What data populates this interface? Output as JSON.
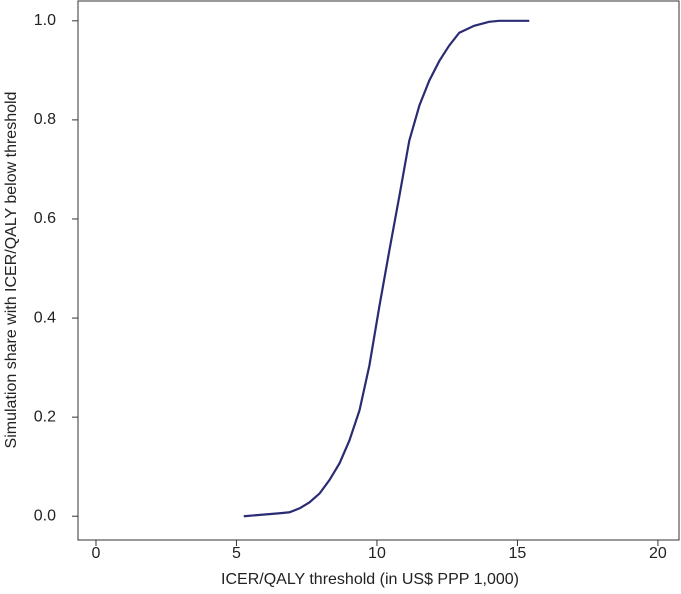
{
  "chart_data": {
    "type": "line",
    "x_label": "ICER/QALY threshold (in US$ PPP 1,000)",
    "y_label": "Simulation share with ICER/QALY below threshold",
    "x": [
      5.26,
      6.54,
      6.89,
      7.25,
      7.6,
      7.96,
      8.31,
      8.67,
      9.02,
      9.38,
      9.73,
      10.09,
      10.44,
      10.8,
      11.15,
      11.51,
      11.86,
      12.22,
      12.57,
      12.93,
      13.46,
      13.99,
      14.35,
      15.42
    ],
    "series": [
      {
        "color": "#2b2b73",
        "values": [
          0.0,
          0.006,
          0.008,
          0.016,
          0.028,
          0.046,
          0.073,
          0.107,
          0.153,
          0.214,
          0.304,
          0.425,
          0.536,
          0.647,
          0.758,
          0.829,
          0.879,
          0.919,
          0.95,
          0.976,
          0.99,
          0.998,
          1.0,
          1.0
        ]
      }
    ],
    "xlim": [
      -0.64,
      20.75
    ],
    "ylim": [
      -0.048,
      1.04
    ],
    "xticks": [
      0,
      5,
      10,
      15,
      20
    ],
    "yticks": [
      {
        "value": 0,
        "label": "0.0"
      },
      {
        "value": 0.2,
        "label": "0.2"
      },
      {
        "value": 0.4,
        "label": "0.4"
      },
      {
        "value": 0.6,
        "label": "0.6"
      },
      {
        "value": 0.8,
        "label": "0.8"
      },
      {
        "value": 1,
        "label": "1.0"
      }
    ],
    "grid": false
  }
}
